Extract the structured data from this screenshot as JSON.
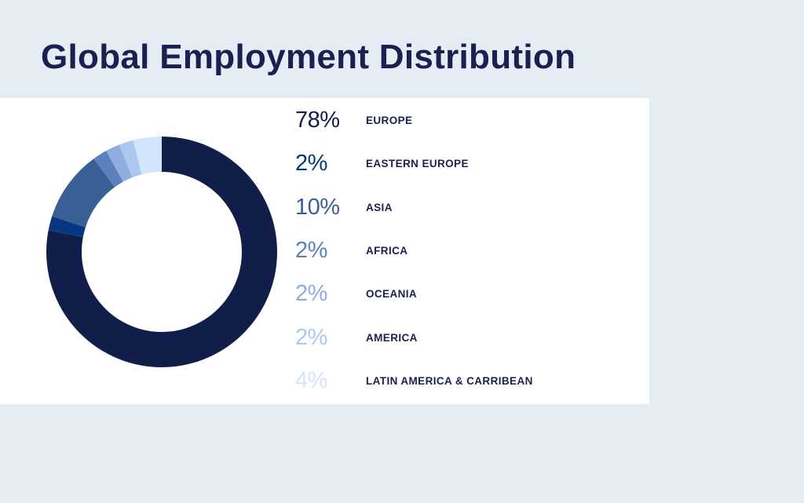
{
  "title": "Global Employment Distribution",
  "chart_data": {
    "type": "pie",
    "title": "Global Employment Distribution",
    "series": [
      {
        "name": "EUROPE",
        "label": "78%",
        "value": 78,
        "color": "#121e4a"
      },
      {
        "name": "EASTERN EUROPE",
        "label": "2%",
        "value": 2,
        "color": "#053880"
      },
      {
        "name": "ASIA",
        "label": "10%",
        "value": 10,
        "color": "#3a5f95"
      },
      {
        "name": "AFRICA",
        "label": "2%",
        "value": 2,
        "color": "#5c82be"
      },
      {
        "name": "OCEANIA",
        "label": "2%",
        "value": 2,
        "color": "#8eaee0"
      },
      {
        "name": "AMERICA",
        "label": "2%",
        "value": 2,
        "color": "#adc8ef"
      },
      {
        "name": "LATIN AMERICA & CARRIBEAN",
        "label": "4%",
        "value": 4,
        "color": "#d3e5fd"
      }
    ]
  }
}
